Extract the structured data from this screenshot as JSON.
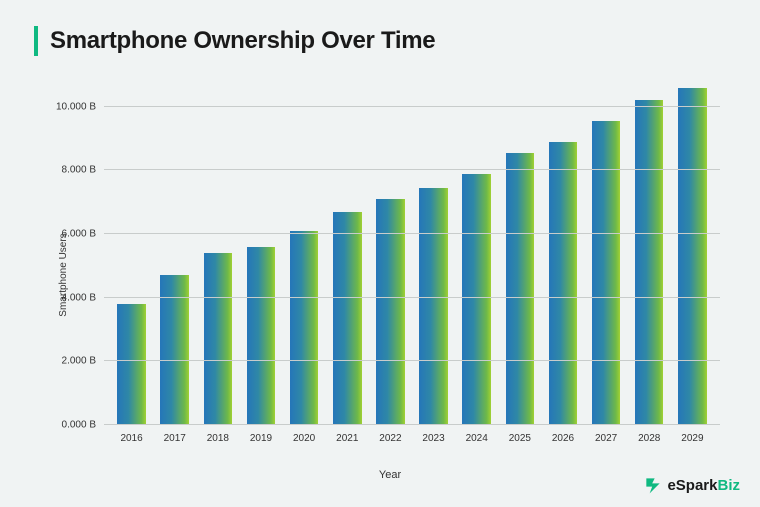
{
  "title": "Smartphone Ownership Over Time",
  "chart": {
    "type": "bar",
    "ylabel": "Smartphone Users",
    "xlabel": "Year",
    "ylim": [
      0,
      11
    ],
    "ytick_step": 2,
    "yticks": [
      "0.000 B",
      "2.000 B",
      "4.000 B",
      "6.000 B",
      "8.000 B",
      "10.000 B"
    ],
    "categories": [
      "2016",
      "2017",
      "2018",
      "2019",
      "2020",
      "2021",
      "2022",
      "2023",
      "2024",
      "2025",
      "2026",
      "2027",
      "2028",
      "2029"
    ],
    "values": [
      3.8,
      4.7,
      5.4,
      5.6,
      6.1,
      6.7,
      7.1,
      7.45,
      7.9,
      8.55,
      8.9,
      9.55,
      10.2,
      10.6
    ],
    "background_color": "#f0f3f3",
    "grid_color": "#c8cccb",
    "title_accent_color": "#0fb981",
    "title_fontsize": 24,
    "label_fontsize": 10,
    "bar_gradient": [
      "#2576b9",
      "#2f88a6",
      "#6fb948",
      "#a1d133"
    ],
    "bar_width": 0.66
  },
  "branding": {
    "name_prefix": "eSpark",
    "name_suffix": "Biz",
    "accent_color": "#0fb981"
  }
}
